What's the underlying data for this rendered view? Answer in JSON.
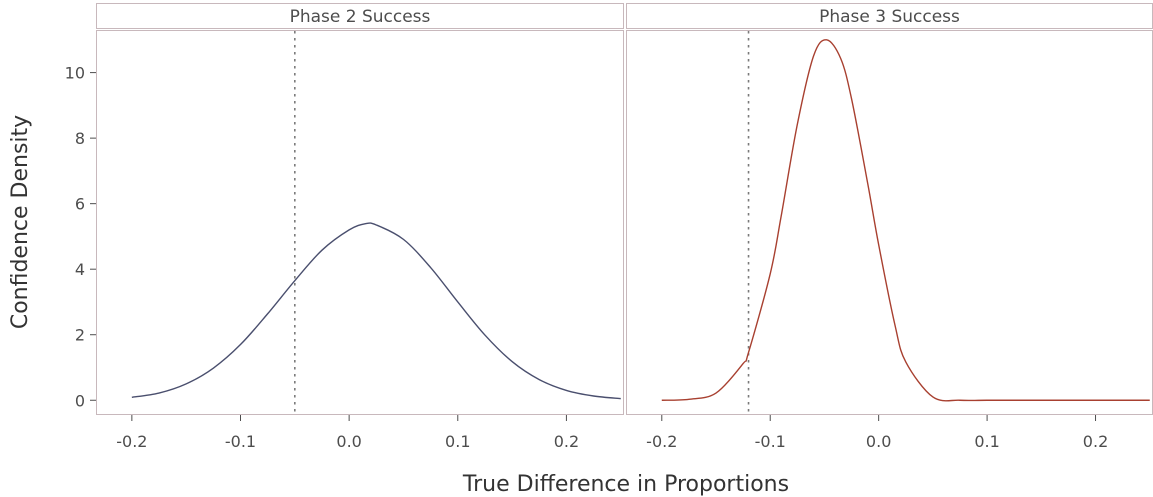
{
  "chart_data": {
    "type": "line",
    "xlabel": "True Difference in Proportions",
    "ylabel": "Confidence Density",
    "ylim": [
      -0.45,
      11.3
    ],
    "xlim": [
      -0.233,
      0.253
    ],
    "x_ticks": [
      -0.2,
      -0.1,
      0.0,
      0.1,
      0.2
    ],
    "x_tick_labels": [
      "-0.2",
      "-0.1",
      "0.0",
      "0.1",
      "0.2"
    ],
    "y_ticks": [
      0,
      2,
      4,
      6,
      8,
      10
    ],
    "y_tick_labels": [
      "0",
      "2",
      "4",
      "6",
      "8",
      "10"
    ],
    "grid": false,
    "panels": [
      {
        "name": "Phase 2 Success",
        "color": "#4a4f6e",
        "vline_x": -0.05,
        "x": [
          -0.2,
          -0.175,
          -0.15,
          -0.125,
          -0.1,
          -0.075,
          -0.05,
          -0.025,
          0.0,
          0.015,
          0.025,
          0.05,
          0.075,
          0.1,
          0.125,
          0.15,
          0.175,
          0.2,
          0.225,
          0.25
        ],
        "y": [
          0.09,
          0.22,
          0.5,
          0.98,
          1.7,
          2.64,
          3.65,
          4.58,
          5.2,
          5.39,
          5.35,
          4.91,
          4.05,
          3.0,
          1.99,
          1.18,
          0.63,
          0.3,
          0.13,
          0.05
        ]
      },
      {
        "name": "Phase 3 Success",
        "color": "#a84030",
        "vline_x": -0.12,
        "x": [
          -0.2,
          -0.175,
          -0.15,
          -0.125,
          -0.12,
          -0.1,
          -0.09,
          -0.075,
          -0.06,
          -0.048,
          -0.035,
          -0.025,
          -0.01,
          0.0,
          0.015,
          0.025,
          0.05,
          0.075,
          0.1,
          0.15,
          0.2,
          0.25
        ],
        "y": [
          0.0,
          0.03,
          0.22,
          1.12,
          1.46,
          3.86,
          5.6,
          8.42,
          10.51,
          11.0,
          10.43,
          9.2,
          6.6,
          4.75,
          2.3,
          1.17,
          0.1,
          0.0,
          0.0,
          0.0,
          0.0,
          0.0
        ]
      }
    ]
  }
}
